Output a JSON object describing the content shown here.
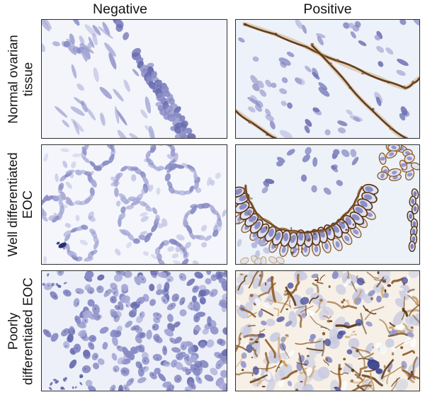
{
  "figure": {
    "type": "immunohistochemistry-panel-figure",
    "columns": [
      {
        "id": "negative",
        "label": "Negative"
      },
      {
        "id": "positive",
        "label": "Positive"
      }
    ],
    "rows": [
      {
        "id": "normal-ovarian-tissue",
        "label": "Normal ovarian tissue",
        "label_line1": "Normal ovarian",
        "label_line2": "tissue"
      },
      {
        "id": "well-differentiated-eoc",
        "label": "Well differentiated EOC",
        "label_line1": "Well differentiated",
        "label_line2": "EOC"
      },
      {
        "id": "poorly-differentiated-eoc",
        "label": "Poorly differentiated EOC",
        "label_line1": "Poorly",
        "label_line2": "differentiated EOC"
      }
    ],
    "palette": {
      "nucleus_light": "#a6a9d6",
      "nucleus_mid": "#878ac4",
      "nucleus_dark": "#6a6db1",
      "nucleus_deep": "#4c519c",
      "chromatin": "#5a5ea6",
      "navy_clump": "#27306f",
      "dab_light": "#c79a5e",
      "dab_mid": "#8f5a24",
      "dab_dark": "#5c3510",
      "cell_body": "#dfe2f2",
      "lavender_body": "#c7c9e0",
      "panel_border": "#2f2f2f",
      "label_color": "#141414"
    },
    "panels": [
      {
        "id": "normal-negative",
        "row_label": "Normal ovarian tissue",
        "column_label": "Negative",
        "stain_result": "negative (hematoxylin only)",
        "pattern": "normal_negative",
        "seed": 7,
        "bg": "#f3f5fb",
        "features": {
          "epithelial_band": {
            "from": [
              104,
              0
            ],
            "to": [
              200,
              166
            ]
          },
          "spindle_count": 48
        }
      },
      {
        "id": "normal-positive",
        "row_label": "Normal ovarian tissue",
        "column_label": "Positive",
        "stain_result": "positive (brown membranous staining of surface epithelium)",
        "pattern": "normal_positive",
        "seed": 21,
        "bg": "#edf1f9",
        "features": {
          "brown_lines": [
            [
              [
                12,
                6
              ],
              [
                55,
                20
              ],
              [
                100,
                38
              ],
              [
                142,
                57
              ],
              [
                182,
                74
              ],
              [
                215,
                87
              ],
              [
                240,
                96
              ],
              [
                251,
                89
              ],
              [
                260,
                82
              ]
            ],
            [
              [
                108,
                36
              ],
              [
                135,
                64
              ],
              [
                163,
                96
              ],
              [
                192,
                126
              ],
              [
                220,
                152
              ],
              [
                241,
                166
              ]
            ],
            [
              [
                0,
                128
              ],
              [
                22,
                144
              ],
              [
                45,
                160
              ],
              [
                56,
                166
              ]
            ]
          ]
        }
      },
      {
        "id": "well-differentiated-negative",
        "row_label": "Well differentiated EOC",
        "column_label": "Negative",
        "stain_result": "negative (glandular structures, hematoxylin only)",
        "pattern": "glands",
        "seed": 33,
        "bg": "#f5f6fc",
        "features": {
          "rings": [
            [
              50,
              60,
              23
            ],
            [
              126,
              55,
              22
            ],
            [
              198,
              48,
              20
            ],
            [
              226,
              107,
              23
            ],
            [
              136,
              107,
              25
            ],
            [
              56,
              137,
              22
            ],
            [
              183,
              153,
              19
            ],
            [
              80,
              10,
              20
            ],
            [
              168,
              16,
              18
            ],
            [
              14,
              88,
              16
            ]
          ],
          "dark_clump": [
            29,
            140
          ]
        }
      },
      {
        "id": "well-differentiated-positive",
        "row_label": "Well differentiated EOC",
        "column_label": "Positive",
        "stain_result": "positive (strong brown membranous staining of glandular epithelium)",
        "pattern": "arc",
        "seed": 5,
        "bg": "#edf2f8",
        "features": {
          "arc_center": [
            95,
            38
          ],
          "arc_radius": 96,
          "arc_degrees": [
            14,
            168
          ]
        }
      },
      {
        "id": "poorly-differentiated-negative",
        "row_label": "Poorly differentiated EOC",
        "column_label": "Negative",
        "stain_result": "negative (dense sheets of tumor nuclei)",
        "pattern": "sheet",
        "seed": 91,
        "bg": "#eef0f9",
        "features": {
          "white_patches": [
            [
              18,
              55,
              30,
              28
            ],
            [
              15,
              125,
              28,
              25
            ],
            [
              88,
              150,
              30,
              14
            ],
            [
              42,
              14,
              20,
              12
            ]
          ],
          "nucleus_count": 270
        }
      },
      {
        "id": "poorly-differentiated-positive",
        "row_label": "Poorly differentiated EOC",
        "column_label": "Positive",
        "stain_result": "positive (diffuse brown reticular staining)",
        "pattern": "mixed",
        "seed": 55,
        "bg": "#f6f0e7",
        "features": {
          "brown_stroke_count": 95,
          "dark_cluster": [
            195,
            130
          ]
        }
      }
    ]
  }
}
